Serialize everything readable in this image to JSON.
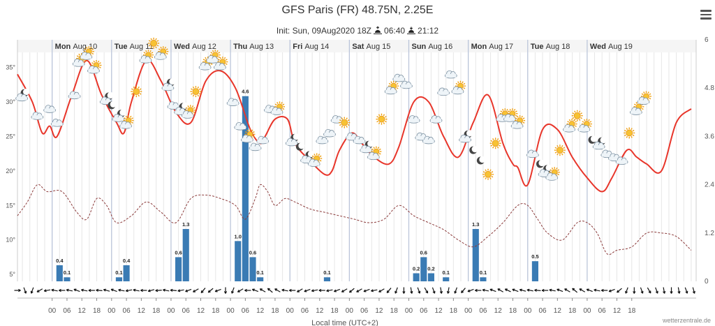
{
  "header": {
    "title": "GFS Paris (FR) 48.75N, 2.25E",
    "init_label": "Init: Sun, 09Aug2020 18Z",
    "sunrise": "06:40",
    "sunset": "21:12"
  },
  "menu_icon": "hamburger-menu-icon",
  "credit": "wetterzentrale.de",
  "colors": {
    "temperature": "#e8352a",
    "dewpoint": "#8b3a3a",
    "precipitation": "#3a7bb4",
    "day_separator": "#b7c2d8",
    "grid": "#e6e6e6"
  },
  "chart_data": {
    "type": "line",
    "x_unit": "hours from Mon Aug 10 00:00 local time",
    "xlabel": "Local time (UTC+2)",
    "days": [
      {
        "dow": "Mon",
        "date": "Aug 10"
      },
      {
        "dow": "Tue",
        "date": "Aug 11"
      },
      {
        "dow": "Wed",
        "date": "Aug 12"
      },
      {
        "dow": "Thu",
        "date": "Aug 13"
      },
      {
        "dow": "Fri",
        "date": "Aug 14"
      },
      {
        "dow": "Sat",
        "date": "Aug 15"
      },
      {
        "dow": "Sun",
        "date": "Aug 16"
      },
      {
        "dow": "Mon",
        "date": "Aug 17"
      },
      {
        "dow": "Tue",
        "date": "Aug 18"
      },
      {
        "dow": "Wed",
        "date": "Aug 19"
      }
    ],
    "hour_ticks": [
      "00",
      "06",
      "12",
      "18"
    ],
    "left_axis": {
      "ticks": [
        "5°",
        "10°",
        "15°",
        "20°",
        "25°",
        "30°",
        "35°"
      ],
      "range": [
        4,
        39
      ]
    },
    "right_axis": {
      "ticks": [
        "0",
        "1.2",
        "2.4",
        "3.6",
        "4.8",
        "6"
      ],
      "range": [
        0,
        6
      ]
    },
    "series": [
      {
        "key": "temperature",
        "points": [
          [
            -14,
            34
          ],
          [
            -8,
            30
          ],
          [
            -4,
            25.5
          ],
          [
            -1,
            26.5
          ],
          [
            2,
            25
          ],
          [
            8,
            31
          ],
          [
            14,
            36
          ],
          [
            20,
            31
          ],
          [
            26,
            27
          ],
          [
            29,
            25.5
          ],
          [
            32,
            30
          ],
          [
            38,
            36
          ],
          [
            44,
            33
          ],
          [
            50,
            28.5
          ],
          [
            56,
            27
          ],
          [
            62,
            33
          ],
          [
            68,
            34.5
          ],
          [
            74,
            32
          ],
          [
            80,
            26
          ],
          [
            84,
            24
          ],
          [
            86,
            25
          ],
          [
            90,
            27.5
          ],
          [
            95,
            27.5
          ],
          [
            98,
            24
          ],
          [
            104,
            21.5
          ],
          [
            110,
            19.5
          ],
          [
            113,
            20
          ],
          [
            116,
            23
          ],
          [
            121,
            25.5
          ],
          [
            125,
            24
          ],
          [
            130,
            22
          ],
          [
            136,
            21
          ],
          [
            140,
            23.5
          ],
          [
            146,
            30
          ],
          [
            152,
            30
          ],
          [
            158,
            25
          ],
          [
            164,
            22
          ],
          [
            170,
            27
          ],
          [
            176,
            31
          ],
          [
            182,
            24
          ],
          [
            186,
            21
          ],
          [
            188,
            20.5
          ],
          [
            192,
            18
          ],
          [
            198,
            26
          ],
          [
            204,
            26
          ],
          [
            210,
            22
          ],
          [
            216,
            19
          ],
          [
            222,
            17
          ],
          [
            226,
            19
          ],
          [
            232,
            23
          ],
          [
            236,
            22
          ],
          [
            240,
            21
          ],
          [
            246,
            20
          ],
          [
            252,
            27
          ],
          [
            258,
            29
          ]
        ]
      },
      {
        "key": "dewpoint",
        "points": [
          [
            -14,
            13.5
          ],
          [
            -10,
            15.5
          ],
          [
            -6,
            18
          ],
          [
            -2,
            17
          ],
          [
            4,
            17
          ],
          [
            10,
            14
          ],
          [
            14,
            13
          ],
          [
            18,
            16
          ],
          [
            22,
            15
          ],
          [
            26,
            12.5
          ],
          [
            32,
            13.5
          ],
          [
            38,
            15.5
          ],
          [
            44,
            14
          ],
          [
            50,
            12.5
          ],
          [
            56,
            16
          ],
          [
            62,
            16.5
          ],
          [
            68,
            16
          ],
          [
            74,
            15
          ],
          [
            78,
            13
          ],
          [
            82,
            16
          ],
          [
            84,
            18
          ],
          [
            87,
            17
          ],
          [
            90,
            15
          ],
          [
            94,
            16
          ],
          [
            98,
            15.5
          ],
          [
            104,
            14.5
          ],
          [
            110,
            14
          ],
          [
            116,
            13.5
          ],
          [
            122,
            13
          ],
          [
            128,
            12.5
          ],
          [
            134,
            13
          ],
          [
            140,
            15
          ],
          [
            146,
            13.5
          ],
          [
            152,
            12.5
          ],
          [
            158,
            11.5
          ],
          [
            164,
            10
          ],
          [
            170,
            9
          ],
          [
            176,
            10.5
          ],
          [
            182,
            12.5
          ],
          [
            188,
            15
          ],
          [
            192,
            15
          ],
          [
            196,
            13
          ],
          [
            200,
            11
          ],
          [
            206,
            10
          ],
          [
            212,
            12.5
          ],
          [
            216,
            12.5
          ],
          [
            220,
            11
          ],
          [
            224,
            8
          ],
          [
            228,
            8.5
          ],
          [
            234,
            9
          ],
          [
            240,
            11
          ],
          [
            246,
            11
          ],
          [
            252,
            10.5
          ],
          [
            258,
            8.5
          ]
        ]
      }
    ],
    "precip": [
      {
        "t": 3,
        "v": 0.4,
        "label": "0.4"
      },
      {
        "t": 6,
        "v": 0.1,
        "label": "0.1"
      },
      {
        "t": 27,
        "v": 0.1,
        "label": "0.1"
      },
      {
        "t": 30,
        "v": 0.4,
        "label": "0.4"
      },
      {
        "t": 51,
        "v": 0.6,
        "label": "0.6"
      },
      {
        "t": 54,
        "v": 1.3,
        "label": "1.3"
      },
      {
        "t": 75,
        "v": 1.0,
        "label": "1.0"
      },
      {
        "t": 78,
        "v": 4.6,
        "label": "4.6"
      },
      {
        "t": 81,
        "v": 0.6,
        "label": "0.6"
      },
      {
        "t": 84,
        "v": 0.1,
        "label": "0.1"
      },
      {
        "t": 111,
        "v": 0.1,
        "label": "0.1"
      },
      {
        "t": 147,
        "v": 0.2,
        "label": "0.2"
      },
      {
        "t": 150,
        "v": 0.6,
        "label": "0.6"
      },
      {
        "t": 153,
        "v": 0.2,
        "label": "0.2"
      },
      {
        "t": 159,
        "v": 0.1,
        "label": "0.1"
      },
      {
        "t": 171,
        "v": 1.3,
        "label": "1.3"
      },
      {
        "t": 174,
        "v": 0.1,
        "label": "0.1"
      },
      {
        "t": 195,
        "v": 0.5,
        "label": "0.5"
      }
    ],
    "icons": [
      {
        "t": -12,
        "temp": 31,
        "kind": "moon-cloud"
      },
      {
        "t": -6,
        "temp": 28,
        "kind": "cloud"
      },
      {
        "t": -1,
        "temp": 29,
        "kind": "cloud"
      },
      {
        "t": 2,
        "temp": 27,
        "kind": "cloud"
      },
      {
        "t": 9,
        "temp": 31,
        "kind": "cloud"
      },
      {
        "t": 11,
        "temp": 36,
        "kind": "sun-cloud"
      },
      {
        "t": 14,
        "temp": 37,
        "kind": "sun-cloud"
      },
      {
        "t": 17,
        "temp": 35,
        "kind": "sun-cloud"
      },
      {
        "t": 22,
        "temp": 30.5,
        "kind": "moon-cloud"
      },
      {
        "t": 24,
        "temp": 29.5,
        "kind": "moon"
      },
      {
        "t": 27,
        "temp": 28,
        "kind": "moon-cloud"
      },
      {
        "t": 30,
        "temp": 27,
        "kind": "sun-cloud"
      },
      {
        "t": 34,
        "temp": 31.5,
        "kind": "sun"
      },
      {
        "t": 38,
        "temp": 36.5,
        "kind": "sun-cloud"
      },
      {
        "t": 41,
        "temp": 38.5,
        "kind": "sun"
      },
      {
        "t": 44,
        "temp": 37,
        "kind": "sun-cloud"
      },
      {
        "t": 47,
        "temp": 32.5,
        "kind": "moon-cloud"
      },
      {
        "t": 49,
        "temp": 29.5,
        "kind": "cloud"
      },
      {
        "t": 52,
        "temp": 29,
        "kind": "moon-cloud"
      },
      {
        "t": 55,
        "temp": 28.5,
        "kind": "sun-cloud"
      },
      {
        "t": 58,
        "temp": 31.5,
        "kind": "sun"
      },
      {
        "t": 62,
        "temp": 35.5,
        "kind": "sun-cloud"
      },
      {
        "t": 65,
        "temp": 36.5,
        "kind": "sun-cloud"
      },
      {
        "t": 68,
        "temp": 35.5,
        "kind": "sun-cloud"
      },
      {
        "t": 73,
        "temp": 30,
        "kind": "cloud"
      },
      {
        "t": 76,
        "temp": 26.5,
        "kind": "cloud"
      },
      {
        "t": 79,
        "temp": 25,
        "kind": "sun-cloud"
      },
      {
        "t": 82,
        "temp": 23.5,
        "kind": "cloud"
      },
      {
        "t": 85,
        "temp": 24.5,
        "kind": "cloud"
      },
      {
        "t": 88,
        "temp": 29,
        "kind": "cloud"
      },
      {
        "t": 91,
        "temp": 29,
        "kind": "sun-cloud"
      },
      {
        "t": 97,
        "temp": 24.5,
        "kind": "moon-cloud"
      },
      {
        "t": 100,
        "temp": 23.5,
        "kind": "moon"
      },
      {
        "t": 103,
        "temp": 22,
        "kind": "moon-cloud"
      },
      {
        "t": 106,
        "temp": 21.5,
        "kind": "sun-cloud"
      },
      {
        "t": 109,
        "temp": 24.5,
        "kind": "cloud"
      },
      {
        "t": 112,
        "temp": 25.5,
        "kind": "cloud"
      },
      {
        "t": 115,
        "temp": 27.5,
        "kind": "cloud"
      },
      {
        "t": 118,
        "temp": 27,
        "kind": "sun"
      },
      {
        "t": 121,
        "temp": 25,
        "kind": "cloud"
      },
      {
        "t": 124,
        "temp": 24.5,
        "kind": "cloud"
      },
      {
        "t": 127,
        "temp": 23.5,
        "kind": "moon-cloud"
      },
      {
        "t": 130,
        "temp": 22.5,
        "kind": "sun-cloud"
      },
      {
        "t": 133,
        "temp": 27.5,
        "kind": "sun"
      },
      {
        "t": 137,
        "temp": 32,
        "kind": "sun-cloud"
      },
      {
        "t": 140,
        "temp": 33.5,
        "kind": "cloud"
      },
      {
        "t": 143,
        "temp": 32.5,
        "kind": "cloud"
      },
      {
        "t": 146,
        "temp": 27.5,
        "kind": "cloud"
      },
      {
        "t": 149,
        "temp": 25,
        "kind": "cloud"
      },
      {
        "t": 152,
        "temp": 24.5,
        "kind": "cloud"
      },
      {
        "t": 155,
        "temp": 27.5,
        "kind": "cloud"
      },
      {
        "t": 158,
        "temp": 31.5,
        "kind": "cloud"
      },
      {
        "t": 161,
        "temp": 34,
        "kind": "cloud"
      },
      {
        "t": 164,
        "temp": 32,
        "kind": "sun-cloud"
      },
      {
        "t": 167,
        "temp": 25,
        "kind": "moon-cloud"
      },
      {
        "t": 170,
        "temp": 23,
        "kind": "moon"
      },
      {
        "t": 173,
        "temp": 21.5,
        "kind": "moon"
      },
      {
        "t": 176,
        "temp": 19.5,
        "kind": "sun"
      },
      {
        "t": 179,
        "temp": 24,
        "kind": "sun"
      },
      {
        "t": 182,
        "temp": 28,
        "kind": "sun-cloud"
      },
      {
        "t": 185,
        "temp": 28,
        "kind": "sun-cloud"
      },
      {
        "t": 188,
        "temp": 27,
        "kind": "sun-cloud"
      },
      {
        "t": 194,
        "temp": 22.5,
        "kind": "cloud"
      },
      {
        "t": 197,
        "temp": 21,
        "kind": "moon"
      },
      {
        "t": 199,
        "temp": 20,
        "kind": "moon-cloud"
      },
      {
        "t": 202,
        "temp": 19.5,
        "kind": "sun-cloud"
      },
      {
        "t": 205,
        "temp": 23,
        "kind": "sun"
      },
      {
        "t": 209,
        "temp": 26.5,
        "kind": "sun-cloud"
      },
      {
        "t": 212,
        "temp": 28,
        "kind": "sun"
      },
      {
        "t": 215,
        "temp": 26.5,
        "kind": "sun-cloud"
      },
      {
        "t": 218,
        "temp": 24.5,
        "kind": "moon"
      },
      {
        "t": 221,
        "temp": 24,
        "kind": "moon-cloud"
      },
      {
        "t": 224,
        "temp": 22.5,
        "kind": "cloud"
      },
      {
        "t": 227,
        "temp": 22,
        "kind": "cloud"
      },
      {
        "t": 230,
        "temp": 21.5,
        "kind": "cloud"
      },
      {
        "t": 233,
        "temp": 25.5,
        "kind": "sun"
      },
      {
        "t": 236,
        "temp": 29,
        "kind": "sun-cloud"
      },
      {
        "t": 239,
        "temp": 30.5,
        "kind": "sun-cloud"
      }
    ],
    "wind": [
      [
        -14,
        90
      ],
      [
        -11,
        160
      ],
      [
        -8,
        200
      ],
      [
        -5,
        240
      ],
      [
        -2,
        260
      ],
      [
        1,
        280
      ],
      [
        4,
        270
      ],
      [
        7,
        280
      ],
      [
        10,
        290
      ],
      [
        13,
        280
      ],
      [
        16,
        270
      ],
      [
        19,
        275
      ],
      [
        22,
        285
      ],
      [
        25,
        290
      ],
      [
        28,
        280
      ],
      [
        31,
        260
      ],
      [
        34,
        280
      ],
      [
        37,
        270
      ],
      [
        40,
        255
      ],
      [
        43,
        265
      ],
      [
        46,
        280
      ],
      [
        49,
        275
      ],
      [
        52,
        260
      ],
      [
        55,
        250
      ],
      [
        58,
        240
      ],
      [
        61,
        220
      ],
      [
        64,
        230
      ],
      [
        67,
        250
      ],
      [
        70,
        180
      ],
      [
        73,
        200
      ],
      [
        76,
        240
      ],
      [
        79,
        270
      ],
      [
        82,
        290
      ],
      [
        85,
        300
      ],
      [
        88,
        310
      ],
      [
        91,
        300
      ],
      [
        94,
        280
      ],
      [
        97,
        270
      ],
      [
        100,
        240
      ],
      [
        103,
        250
      ],
      [
        106,
        260
      ],
      [
        109,
        270
      ],
      [
        112,
        260
      ],
      [
        115,
        250
      ],
      [
        118,
        240
      ],
      [
        121,
        230
      ],
      [
        124,
        240
      ],
      [
        127,
        250
      ],
      [
        130,
        260
      ],
      [
        133,
        240
      ],
      [
        136,
        220
      ],
      [
        139,
        200
      ],
      [
        142,
        180
      ],
      [
        145,
        170
      ],
      [
        148,
        160
      ],
      [
        151,
        150
      ],
      [
        154,
        160
      ],
      [
        157,
        170
      ],
      [
        160,
        190
      ],
      [
        163,
        200
      ],
      [
        166,
        220
      ],
      [
        169,
        250
      ],
      [
        172,
        270
      ],
      [
        175,
        280
      ],
      [
        178,
        290
      ],
      [
        181,
        300
      ],
      [
        184,
        295
      ],
      [
        187,
        290
      ],
      [
        190,
        285
      ],
      [
        193,
        280
      ],
      [
        196,
        275
      ],
      [
        199,
        270
      ],
      [
        202,
        280
      ],
      [
        205,
        290
      ],
      [
        208,
        300
      ],
      [
        211,
        310
      ],
      [
        214,
        300
      ],
      [
        217,
        290
      ],
      [
        220,
        280
      ],
      [
        223,
        270
      ],
      [
        226,
        250
      ],
      [
        229,
        230
      ],
      [
        232,
        200
      ],
      [
        235,
        180
      ],
      [
        238,
        160
      ],
      [
        241,
        150
      ],
      [
        244,
        160
      ],
      [
        247,
        170
      ],
      [
        250,
        180
      ],
      [
        253,
        170
      ],
      [
        256,
        160
      ],
      [
        259,
        165
      ]
    ]
  }
}
